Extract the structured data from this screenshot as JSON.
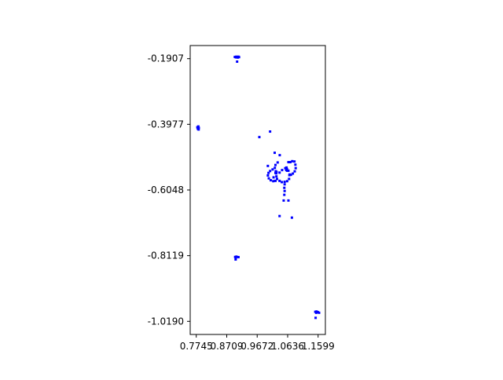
{
  "chart_data": {
    "type": "scatter",
    "title": "",
    "xlabel": "",
    "ylabel": "",
    "xlim": [
      0.7553,
      1.1829
    ],
    "ylim": [
      -1.0604,
      -0.1493
    ],
    "x_ticks": [
      "0.7745",
      "0.8709",
      "0.9672",
      "1.0636",
      "1.1599"
    ],
    "y_ticks": [
      "-0.1907",
      "-0.3977",
      "-0.6048",
      "-0.8119",
      "-1.0190"
    ],
    "grid": false,
    "marker_color": "#0000ff",
    "series": [
      {
        "points": [
          [
            0.8965,
            -0.1853
          ],
          [
            0.901,
            -0.1845
          ],
          [
            0.9048,
            -0.1858
          ],
          [
            0.9075,
            -0.1845
          ],
          [
            0.9098,
            -0.1858
          ],
          [
            0.9,
            -0.1866
          ],
          [
            0.906,
            -0.1871
          ],
          [
            0.9037,
            -0.2
          ],
          [
            0.778,
            -0.407
          ],
          [
            0.781,
            -0.4045
          ],
          [
            0.7825,
            -0.409
          ],
          [
            0.7795,
            -0.4118
          ],
          [
            0.782,
            -0.414
          ],
          [
            0.974,
            -0.438
          ],
          [
            1.008,
            -0.4205
          ],
          [
            1.0225,
            -0.4875
          ],
          [
            1.0385,
            -0.495
          ],
          [
            1.038,
            -0.55
          ],
          [
            1.046,
            -0.542
          ],
          [
            1.056,
            -0.536
          ],
          [
            1.06,
            -0.538
          ],
          [
            1.066,
            -0.544
          ],
          [
            1.07,
            -0.556
          ],
          [
            1.068,
            -0.57
          ],
          [
            1.062,
            -0.577
          ],
          [
            1.054,
            -0.579
          ],
          [
            1.045,
            -0.58
          ],
          [
            1.038,
            -0.576
          ],
          [
            1.03,
            -0.57
          ],
          [
            1.028,
            -0.562
          ],
          [
            1.025,
            -0.526
          ],
          [
            1.032,
            -0.518
          ],
          [
            1.023,
            -0.535
          ],
          [
            1.016,
            -0.54
          ],
          [
            1.008,
            -0.545
          ],
          [
            1.003,
            -0.551
          ],
          [
            1.001,
            -0.559
          ],
          [
            1.004,
            -0.568
          ],
          [
            1.01,
            -0.574
          ],
          [
            1.018,
            -0.577
          ],
          [
            1.025,
            -0.576
          ],
          [
            1.019,
            -0.565
          ],
          [
            1.085,
            -0.515
          ],
          [
            1.078,
            -0.514
          ],
          [
            1.072,
            -0.517
          ],
          [
            1.088,
            -0.525
          ],
          [
            1.089,
            -0.536
          ],
          [
            1.086,
            -0.546
          ],
          [
            1.08,
            -0.553
          ],
          [
            1.074,
            -0.557
          ],
          [
            1.069,
            -0.558
          ],
          [
            1.066,
            -0.517
          ],
          [
            1.026,
            -0.5455
          ],
          [
            1.0285,
            -0.548
          ],
          [
            1.025,
            -0.551
          ],
          [
            1.0275,
            -0.5525
          ],
          [
            1.06,
            -0.534
          ],
          [
            1.0615,
            -0.539
          ],
          [
            1.059,
            -0.542
          ],
          [
            1.062,
            -0.544
          ],
          [
            1.001,
            -0.529
          ],
          [
            1.054,
            -0.587
          ],
          [
            1.053,
            -0.598
          ],
          [
            1.054,
            -0.608
          ],
          [
            1.053,
            -0.62
          ],
          [
            1.051,
            -0.638
          ],
          [
            1.066,
            -0.638
          ],
          [
            1.038,
            -0.687
          ],
          [
            1.077,
            -0.692
          ],
          [
            0.8975,
            -0.816
          ],
          [
            0.9015,
            -0.815
          ],
          [
            0.908,
            -0.8165
          ],
          [
            0.8995,
            -0.82
          ],
          [
            0.899,
            -0.824
          ],
          [
            1.151,
            -0.989
          ],
          [
            1.155,
            -0.988
          ],
          [
            1.159,
            -0.99
          ],
          [
            1.163,
            -0.992
          ],
          [
            1.154,
            -0.992
          ],
          [
            1.152,
            -1.008
          ]
        ]
      }
    ]
  }
}
